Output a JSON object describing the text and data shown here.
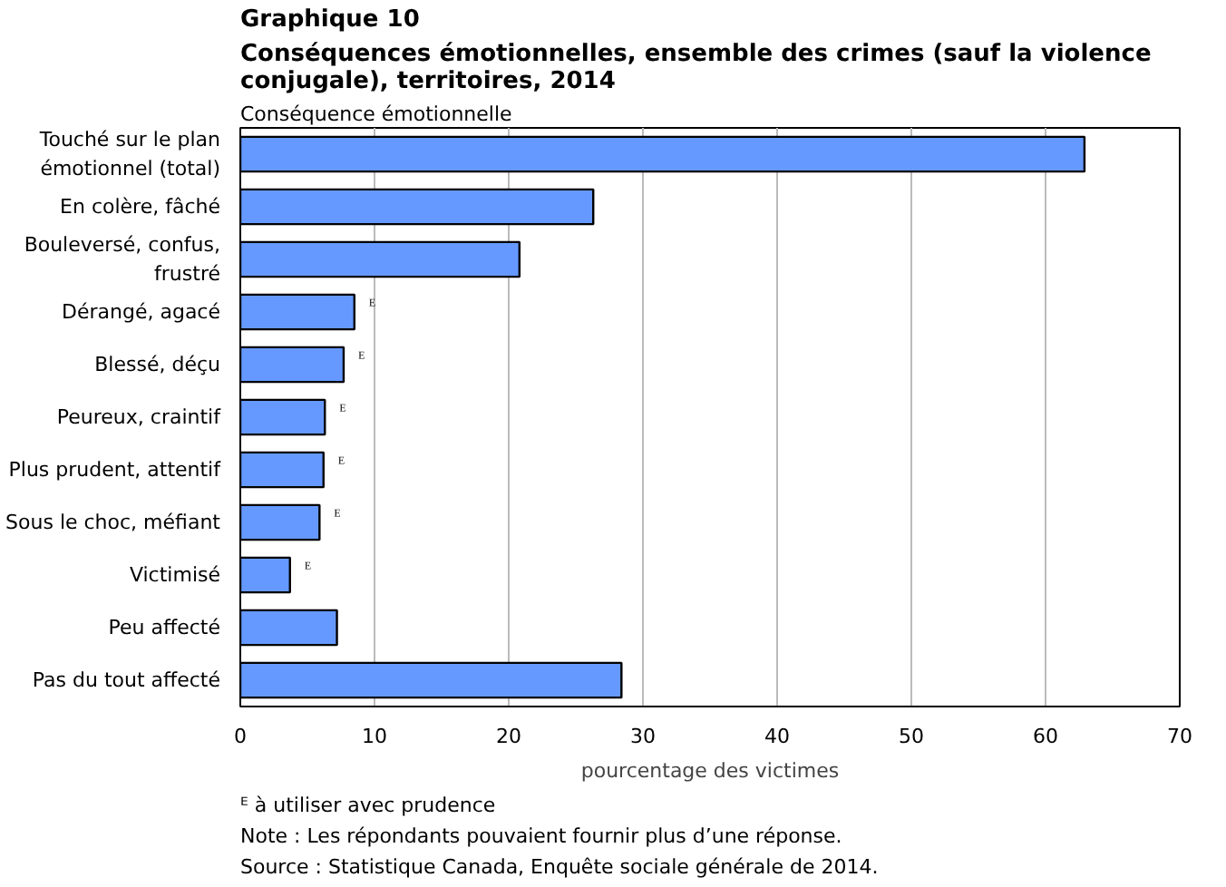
{
  "chart_data": {
    "type": "bar",
    "orientation": "horizontal",
    "title": "Graphique  10",
    "subtitle": "Conséquences émotionnelles, ensemble des crimes (sauf la violence conjugale), territoires, 2014",
    "ylabel": "Conséquence émotionnelle",
    "xlabel": "pourcentage des victimes",
    "categories": [
      "Touché sur le plan émotionnel (total)",
      "En colère, fâché",
      "Bouleversé, confus, frustré",
      "Dérangé, agacé",
      "Blessé, déçu",
      "Peureux, craintif",
      "Plus prudent, attentif",
      "Sous le choc, méfiant",
      "Victimisé",
      "Peu affecté",
      "Pas du tout affecté"
    ],
    "values": [
      62.9,
      26.3,
      20.8,
      8.5,
      7.7,
      6.3,
      6.2,
      5.9,
      3.7,
      7.2,
      28.4
    ],
    "value_labels": [
      null,
      null,
      null,
      "ᴱ",
      "ᴱ",
      "ᴱ",
      "ᴱ",
      "ᴱ",
      "ᴱ",
      null,
      null
    ],
    "color": "#6699ff",
    "xlim": [
      0,
      70
    ],
    "xticks": [
      0,
      10,
      20,
      30,
      40,
      50,
      60,
      70
    ],
    "grid": "x",
    "annotations": [
      "ᴱ à utiliser avec prudence",
      "Note : Les répondants pouvaient fournir plus d’une réponse.",
      "Source : Statistique Canada, Enquête sociale générale de 2014."
    ]
  }
}
